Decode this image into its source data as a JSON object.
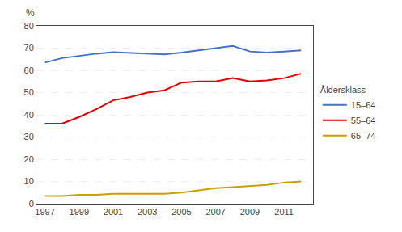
{
  "chart_data": {
    "type": "line",
    "ylabel": "%",
    "legend_title": "Åldersklass",
    "x": [
      1997,
      1998,
      1999,
      2000,
      2001,
      2002,
      2003,
      2004,
      2005,
      2006,
      2007,
      2008,
      2009,
      2010,
      2011,
      2012
    ],
    "series": [
      {
        "name": "15–64",
        "color": "#4472C4",
        "values": [
          63.5,
          65.5,
          66.5,
          67.5,
          68.2,
          67.8,
          67.5,
          67.2,
          68.0,
          69.0,
          70.0,
          71.0,
          68.5,
          68.0,
          68.5,
          69.0
        ]
      },
      {
        "name": "55–64",
        "color": "#E00000",
        "values": [
          36.0,
          36.0,
          39.0,
          42.5,
          46.5,
          48.0,
          50.0,
          51.0,
          54.5,
          55.0,
          55.0,
          56.5,
          55.0,
          55.5,
          56.5,
          58.5
        ]
      },
      {
        "name": "65–74",
        "color": "#C8A000",
        "values": [
          3.5,
          3.5,
          4.0,
          4.0,
          4.5,
          4.5,
          4.5,
          4.5,
          5.0,
          6.0,
          7.0,
          7.5,
          8.0,
          8.5,
          9.5,
          10.0
        ]
      }
    ],
    "xlim": [
      1996.5,
      2012.7
    ],
    "xticks": [
      1997,
      1999,
      2001,
      2003,
      2005,
      2007,
      2009,
      2011
    ],
    "ylim": [
      0,
      80
    ],
    "yticks": [
      0,
      10,
      20,
      30,
      40,
      50,
      60,
      70,
      80
    ],
    "grid": "y",
    "legend": "right"
  }
}
